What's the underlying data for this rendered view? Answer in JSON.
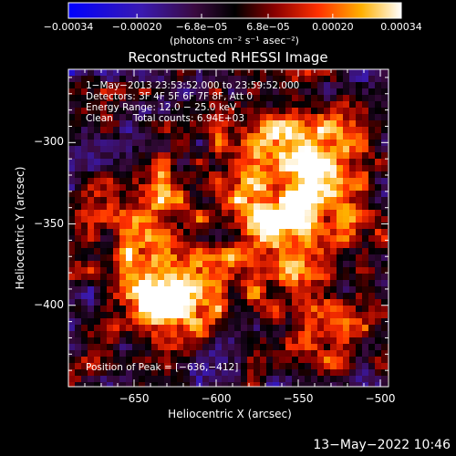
{
  "chart_data": {
    "type": "heatmap",
    "title": "Reconstructed RHESSI Image",
    "xlabel": "Heliocentric X (arcsec)",
    "ylabel": "Heliocentric Y (arcsec)",
    "xlim": [
      -690,
      -495
    ],
    "ylim": [
      -450,
      -255
    ],
    "x_ticks": [
      -650,
      -600,
      -550,
      -500
    ],
    "x_tick_labels": [
      "−650",
      "−600",
      "−550",
      "−500"
    ],
    "y_ticks": [
      -300,
      -350,
      -400
    ],
    "y_tick_labels": [
      "−300",
      "−350",
      "−400"
    ],
    "colorbar": {
      "range": [
        -0.00034,
        0.00034
      ],
      "ticks": [
        -0.00034,
        -0.0002,
        -6.8e-05,
        6.8e-05,
        0.0002,
        0.00034
      ],
      "tick_labels": [
        "−0.00034",
        "−0.00020",
        "−6.8e−05",
        "6.8e−05",
        "0.00020",
        "0.00034"
      ],
      "units": "(photons cm⁻² s⁻¹ asec⁻²)",
      "colormap": [
        "#0000ff",
        "#5a2a9a",
        "#000000",
        "#8a0000",
        "#ff4000",
        "#ffc000",
        "#ffffff"
      ]
    },
    "annotations": {
      "time_range": "1−May−2013 23:53:52.000 to 23:59:52.000",
      "detectors": "Detectors: 3F 4F 5F 6F 7F 8F, Att 0",
      "energy_range": "Energy Range: 12.0 − 25.0 keV",
      "method": "Clean",
      "total_counts": "Total counts: 6.94E+03",
      "peak_position": "Position of Peak = [−636,−412]"
    },
    "peak": {
      "x": -636,
      "y": -412
    },
    "sources": [
      {
        "x": -634,
        "y": -400,
        "amp": 1.0
      },
      {
        "x": -640,
        "y": -365,
        "amp": 0.6
      },
      {
        "x": -648,
        "y": -330,
        "amp": 0.55
      },
      {
        "x": -577,
        "y": -300,
        "amp": 0.7
      },
      {
        "x": -568,
        "y": -345,
        "amp": 0.85
      },
      {
        "x": -552,
        "y": -375,
        "amp": 0.6
      },
      {
        "x": -540,
        "y": -305,
        "amp": 0.7
      },
      {
        "x": -525,
        "y": -335,
        "amp": 0.6
      },
      {
        "x": -600,
        "y": -390,
        "amp": 0.5
      },
      {
        "x": -535,
        "y": -420,
        "amp": 0.4
      }
    ]
  },
  "footer": {
    "timestamp": "13−May−2022 10:46"
  }
}
